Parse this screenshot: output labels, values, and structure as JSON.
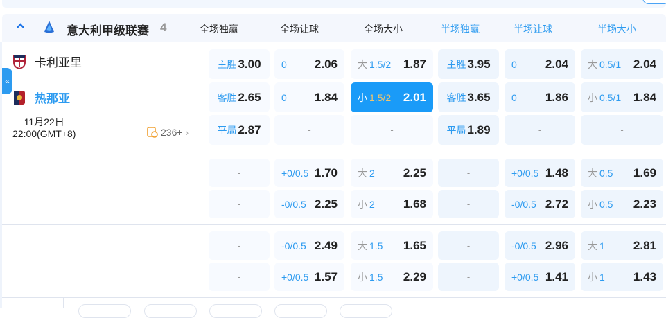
{
  "league": {
    "name": "意大利甲级联赛",
    "count": "4",
    "collapse_icon": "chevron-up-icon",
    "toggle_glyph": "«"
  },
  "columns": [
    "全场独赢",
    "全场让球",
    "全场大小",
    "半场独赢",
    "半场让球",
    "半场大小"
  ],
  "match": {
    "home": "卡利亚里",
    "away": "热那亚",
    "date": "11月22日",
    "time": "22:00(GMT+8)",
    "more": "236+"
  },
  "colors": {
    "accent": "#2d9bf0",
    "selected": "#1a9bf8",
    "line_selected": "#f5c56a"
  },
  "groups": [
    [
      [
        {
          "l": "主胜",
          "o": "3.00"
        },
        {
          "line": "0",
          "o": "2.06"
        },
        {
          "g": "大",
          "line": "1.5/2",
          "o": "1.87"
        },
        {
          "l": "主胜",
          "o": "3.95"
        },
        {
          "line": "0",
          "o": "2.04"
        },
        {
          "g": "大",
          "line": "0.5/1",
          "o": "2.04"
        }
      ],
      [
        {
          "l": "客胜",
          "o": "2.65"
        },
        {
          "line": "0",
          "o": "1.84"
        },
        {
          "g": "小",
          "line": "1.5/2",
          "o": "2.01",
          "sel": true
        },
        {
          "l": "客胜",
          "o": "3.65"
        },
        {
          "line": "0",
          "o": "1.86"
        },
        {
          "g": "小",
          "line": "0.5/1",
          "o": "1.84"
        }
      ],
      [
        {
          "l": "平局",
          "o": "2.87"
        },
        {
          "d": "-"
        },
        {
          "d": "-"
        },
        {
          "l": "平局",
          "o": "1.89"
        },
        {
          "d": "-"
        },
        {
          "d": "-"
        }
      ]
    ],
    [
      [
        {
          "d": "-"
        },
        {
          "line": "+0/0.5",
          "o": "1.70"
        },
        {
          "g": "大",
          "line": "2",
          "o": "2.25"
        },
        {
          "d": "-"
        },
        {
          "line": "+0/0.5",
          "o": "1.48"
        },
        {
          "g": "大",
          "line": "0.5",
          "o": "1.69"
        }
      ],
      [
        {
          "d": "-"
        },
        {
          "line": "-0/0.5",
          "o": "2.25"
        },
        {
          "g": "小",
          "line": "2",
          "o": "1.68"
        },
        {
          "d": "-"
        },
        {
          "line": "-0/0.5",
          "o": "2.72"
        },
        {
          "g": "小",
          "line": "0.5",
          "o": "2.23"
        }
      ]
    ],
    [
      [
        {
          "d": "-"
        },
        {
          "line": "-0/0.5",
          "o": "2.49"
        },
        {
          "g": "大",
          "line": "1.5",
          "o": "1.65"
        },
        {
          "d": "-"
        },
        {
          "line": "-0/0.5",
          "o": "2.96"
        },
        {
          "g": "大",
          "line": "1",
          "o": "2.81"
        }
      ],
      [
        {
          "d": "-"
        },
        {
          "line": "+0/0.5",
          "o": "1.57"
        },
        {
          "g": "小",
          "line": "1.5",
          "o": "2.29"
        },
        {
          "d": "-"
        },
        {
          "line": "+0/0.5",
          "o": "1.41"
        },
        {
          "g": "小",
          "line": "1",
          "o": "1.43"
        }
      ]
    ]
  ]
}
